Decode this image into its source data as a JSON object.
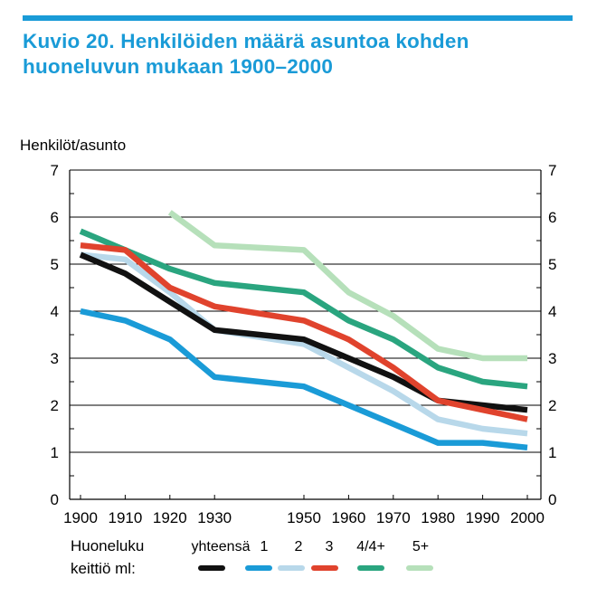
{
  "figure": {
    "title_line1": "Kuvio 20.  Henkilöiden määrä asuntoa kohden",
    "title_line2": "huoneluvun mukaan 1900–2000",
    "accent_color": "#1a9bd7"
  },
  "chart_data": {
    "type": "line",
    "ylabel": "Henkilöt/asunto",
    "xlabel": "",
    "ylim": [
      0,
      7
    ],
    "yticks": [
      0,
      1,
      2,
      3,
      4,
      5,
      6,
      7
    ],
    "xlim": [
      1900,
      2000
    ],
    "xticks": [
      1900,
      1910,
      1920,
      1930,
      1950,
      1960,
      1970,
      1980,
      1990,
      2000
    ],
    "grid": "horizontal",
    "legend": {
      "placement": "bottom",
      "label_line1": "Huoneluku",
      "label_line2": "keittiö ml:"
    },
    "series": [
      {
        "name": "yhteensä",
        "color": "#111111",
        "x": [
          1900,
          1910,
          1920,
          1930,
          1950,
          1960,
          1970,
          1980,
          1990,
          2000
        ],
        "values": [
          5.2,
          4.8,
          4.2,
          3.6,
          3.4,
          3.0,
          2.6,
          2.1,
          2.0,
          1.9
        ]
      },
      {
        "name": "1",
        "color": "#1a9bd7",
        "x": [
          1900,
          1910,
          1920,
          1930,
          1950,
          1960,
          1970,
          1980,
          1990,
          2000
        ],
        "values": [
          4.0,
          3.8,
          3.4,
          2.6,
          2.4,
          2.0,
          1.6,
          1.2,
          1.2,
          1.1
        ]
      },
      {
        "name": "2",
        "color": "#b8d8ea",
        "x": [
          1900,
          1910,
          1920,
          1930,
          1950,
          1960,
          1970,
          1980,
          1990,
          2000
        ],
        "values": [
          5.2,
          5.1,
          4.4,
          3.6,
          3.3,
          2.8,
          2.3,
          1.7,
          1.5,
          1.4
        ]
      },
      {
        "name": "3",
        "color": "#e0432d",
        "x": [
          1900,
          1910,
          1920,
          1930,
          1950,
          1960,
          1970,
          1980,
          1990,
          2000
        ],
        "values": [
          5.4,
          5.3,
          4.5,
          4.1,
          3.8,
          3.4,
          2.8,
          2.1,
          1.9,
          1.7
        ]
      },
      {
        "name": "4/4+",
        "color": "#2aa57f",
        "x": [
          1900,
          1910,
          1920,
          1930,
          1950,
          1960,
          1970,
          1980,
          1990,
          2000
        ],
        "values": [
          5.7,
          5.3,
          4.9,
          4.6,
          4.4,
          3.8,
          3.4,
          2.8,
          2.5,
          2.4
        ]
      },
      {
        "name": "5+",
        "color": "#b6e0ba",
        "x": [
          1920,
          1930,
          1950,
          1960,
          1970,
          1980,
          1990,
          2000
        ],
        "values": [
          6.1,
          5.4,
          5.3,
          4.4,
          3.9,
          3.2,
          3.0,
          3.0
        ]
      }
    ]
  }
}
